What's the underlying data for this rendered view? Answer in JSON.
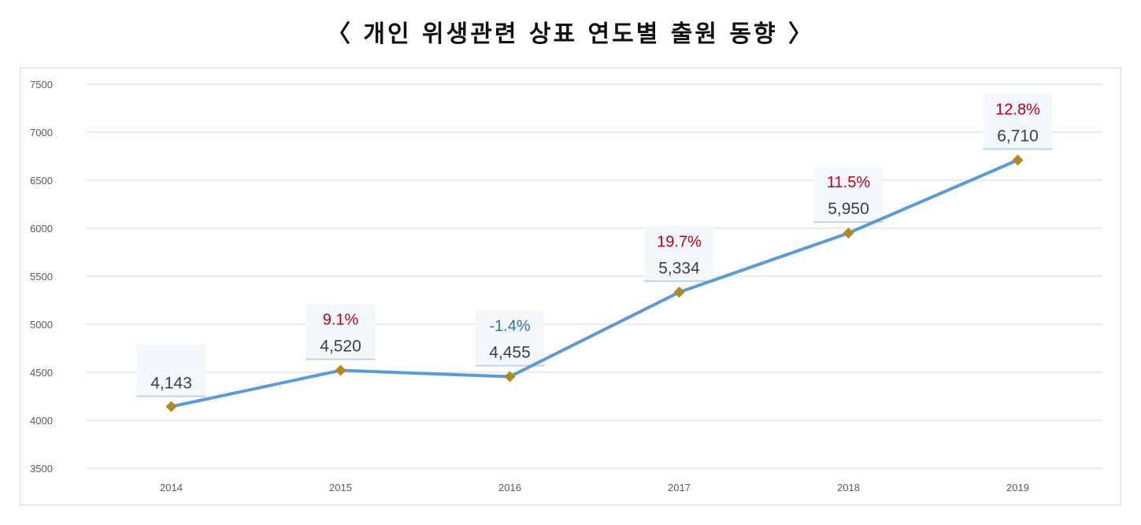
{
  "title": "〈 개인 위생관련 상표 연도별 출원 동향 〉",
  "chart_data": {
    "type": "line",
    "title": "〈 개인 위생관련 상표 연도별 출원 동향 〉",
    "categories": [
      "2014",
      "2015",
      "2016",
      "2017",
      "2018",
      "2019"
    ],
    "values": [
      4143,
      4520,
      4455,
      5334,
      5950,
      6710
    ],
    "value_labels": [
      "4,143",
      "4,520",
      "4,455",
      "5,334",
      "5,950",
      "6,710"
    ],
    "growth_labels": [
      "",
      "9.1%",
      "-1.4%",
      "19.7%",
      "11.5%",
      "12.8%"
    ],
    "growth_colors": [
      "",
      "#c0001b",
      "#2e6fb0",
      "#c0001b",
      "#c0001b",
      "#c0001b"
    ],
    "yticks": [
      3500,
      4000,
      4500,
      5000,
      5500,
      6000,
      6500,
      7000,
      7500
    ],
    "ylim": [
      3500,
      7500
    ],
    "xlabel": "",
    "ylabel": "",
    "grid": true,
    "line_color": "#5b9bd5",
    "marker_color": "#b08a1e"
  }
}
